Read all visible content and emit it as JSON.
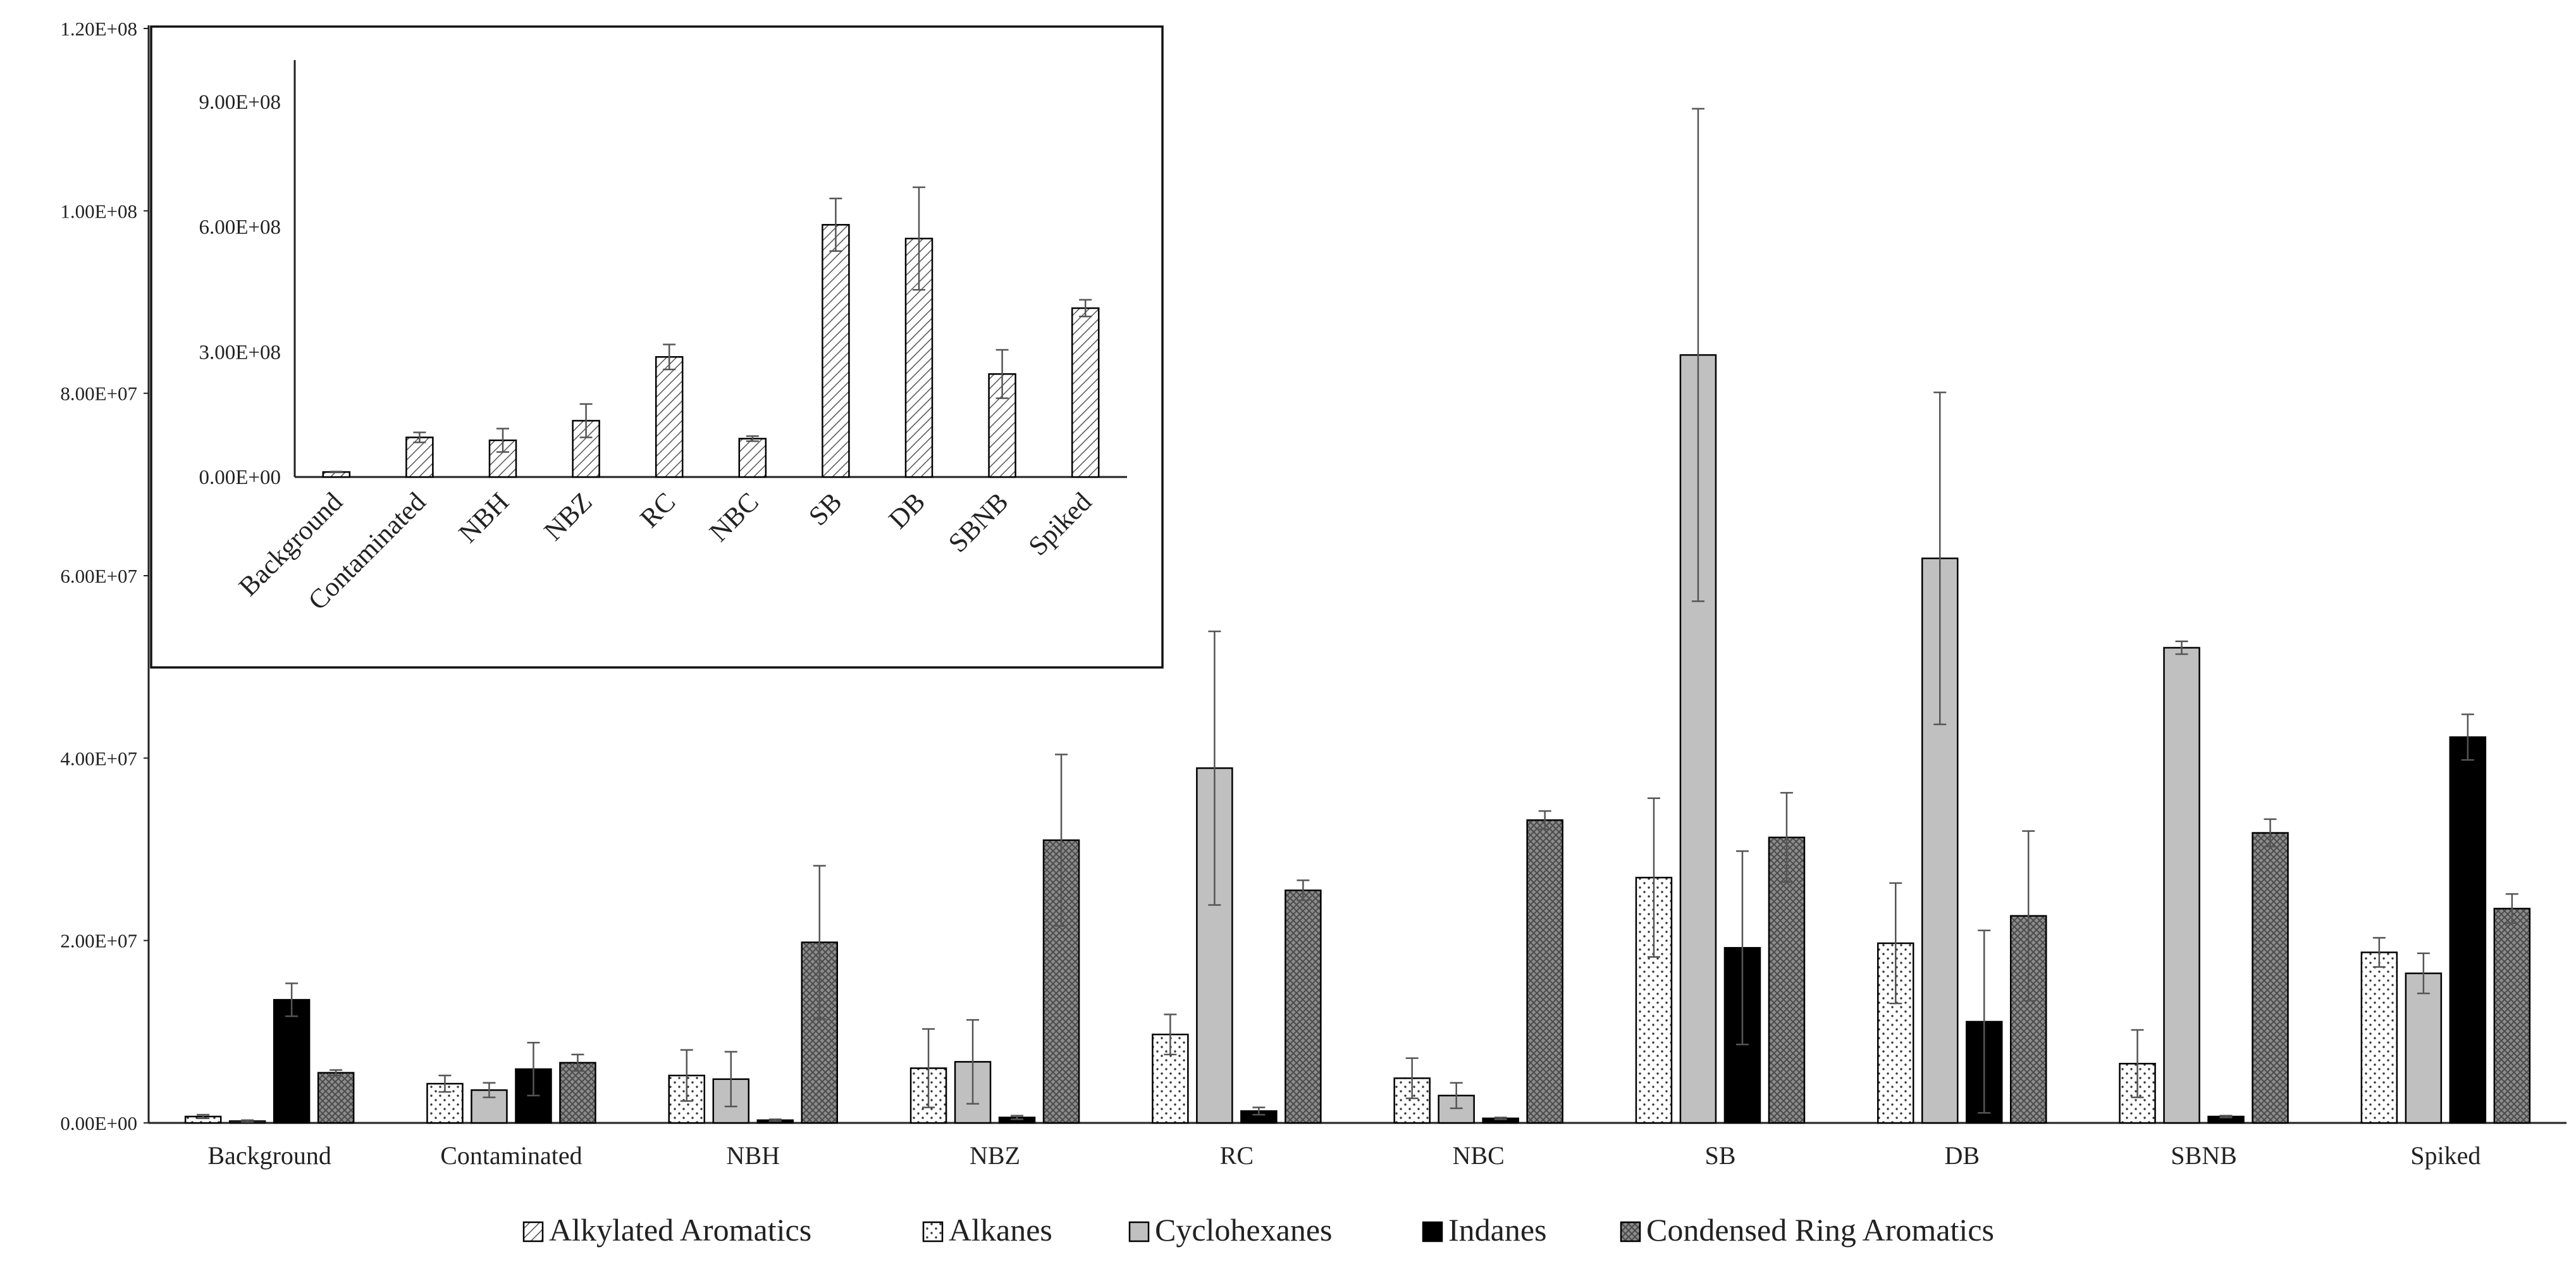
{
  "chart_data": [
    {
      "type": "bar",
      "categories": [
        "Background",
        "Contaminated",
        "NBH",
        "NBZ",
        "RC",
        "NBC",
        "SB",
        "DB",
        "SBNB",
        "Spiked"
      ],
      "series": [
        {
          "name": "Alkanes",
          "pattern": "dots",
          "values": [
            700000,
            4300000,
            5200000,
            6000000,
            9700000,
            4900000,
            26900000,
            19700000,
            6500000,
            18700000
          ],
          "errors": [
            200000,
            900000,
            2800000,
            4300000,
            2200000,
            2200000,
            8700000,
            6600000,
            3700000,
            1600000
          ]
        },
        {
          "name": "Cyclohexanes",
          "pattern": "gray",
          "values": [
            200000,
            3600000,
            4800000,
            6700000,
            38900000,
            3000000,
            84200000,
            61900000,
            52100000,
            16400000
          ],
          "errors": [
            100000,
            800000,
            3000000,
            4600000,
            15000000,
            1400000,
            27000000,
            18200000,
            700000,
            2200000
          ]
        },
        {
          "name": "Indanes",
          "pattern": "black",
          "values": [
            13500000,
            5900000,
            300000,
            600000,
            1300000,
            500000,
            19200000,
            11100000,
            700000,
            42300000
          ],
          "errors": [
            1800000,
            2900000,
            100000,
            200000,
            400000,
            100000,
            10600000,
            10000000,
            100000,
            2500000
          ]
        },
        {
          "name": "Condensed Ring Aromatics",
          "pattern": "crosshatch",
          "values": [
            5500000,
            6600000,
            19800000,
            31000000,
            25500000,
            33200000,
            31300000,
            22700000,
            31800000,
            23500000
          ],
          "errors": [
            300000,
            900000,
            8400000,
            9400000,
            1100000,
            1000000,
            4900000,
            9300000,
            1500000,
            1600000
          ]
        }
      ],
      "ylim": [
        0,
        120000000
      ],
      "yticks": [
        0,
        20000000,
        40000000,
        60000000,
        80000000,
        100000000,
        120000000
      ],
      "ytick_labels": [
        "0.00E+00",
        "2.00E+07",
        "4.00E+07",
        "6.00E+07",
        "8.00E+07",
        "1.00E+08",
        "1.20E+08"
      ],
      "legend": {
        "placement": "bottom",
        "entries": [
          {
            "label": "Alkylated Aromatics",
            "pattern": "diagonal"
          },
          {
            "label": "Alkanes",
            "pattern": "dots"
          },
          {
            "label": "Cyclohexanes",
            "pattern": "gray"
          },
          {
            "label": "Indanes",
            "pattern": "black"
          },
          {
            "label": "Condensed Ring Aromatics",
            "pattern": "crosshatch"
          }
        ]
      },
      "grid": false
    },
    {
      "type": "bar",
      "inset": true,
      "categories": [
        "Background",
        "Contaminated",
        "NBH",
        "NBZ",
        "RC",
        "NBC",
        "SB",
        "DB",
        "SBNB",
        "Spiked"
      ],
      "series": [
        {
          "name": "Alkylated Aromatics",
          "pattern": "diagonal",
          "values": [
            12000000,
            95000000,
            88000000,
            135000000,
            288000000,
            92000000,
            605000000,
            572000000,
            247000000,
            405000000
          ],
          "errors": [
            1000000,
            12000000,
            28000000,
            40000000,
            30000000,
            6000000,
            63000000,
            123000000,
            58000000,
            20000000
          ]
        }
      ],
      "ylim": [
        0,
        1000000000
      ],
      "yticks": [
        0,
        300000000,
        600000000,
        900000000
      ],
      "ytick_labels": [
        "0.00E+00",
        "3.00E+08",
        "6.00E+08",
        "9.00E+08"
      ],
      "grid": false
    }
  ]
}
